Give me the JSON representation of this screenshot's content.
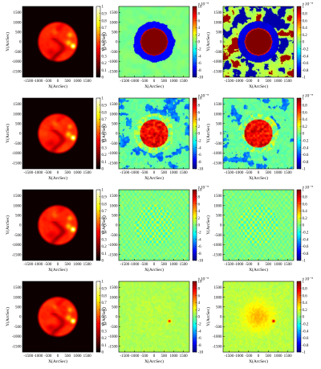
{
  "chart_data": {
    "type": "heatmap",
    "layout": {
      "rows": 4,
      "columns": 3
    },
    "xlabel": "X(ArcSec)",
    "ylabel": "Y(ArcSec)",
    "x_ticks": [
      "-1500",
      "-1000",
      "-500",
      "0",
      "500",
      "1000",
      "1500"
    ],
    "y_ticks": [
      "1500",
      "1000",
      "500",
      "0",
      "-500",
      "-1000",
      "-1500"
    ],
    "xlim": [
      -1800,
      1800
    ],
    "ylim": [
      -1800,
      1800
    ],
    "column_colorbars": [
      {
        "column": 1,
        "colormap": "hot",
        "range": [
          0,
          1
        ],
        "ticks": [
          "1",
          "0.9",
          "0.8",
          "0.7",
          "0.6",
          "0.5",
          "0.4",
          "0.3",
          "0.2",
          "0.1",
          "0"
        ],
        "exponent": ""
      },
      {
        "column": 2,
        "colormap": "jet",
        "range": [
          -10,
          10
        ],
        "ticks": [
          "10",
          "8",
          "6",
          "4",
          "2",
          "0",
          "-2",
          "-4",
          "-6",
          "-8",
          "-10"
        ],
        "exponent": "×10⁻³"
      },
      {
        "column": 3,
        "colormap": "jet",
        "range": [
          -1,
          1
        ],
        "ticks": [
          "1",
          "0.8",
          "0.6",
          "0.4",
          "0.2",
          "0",
          "-0.2",
          "-0.4",
          "-0.6",
          "-0.8",
          "-1"
        ],
        "exponent": "×10⁻³"
      }
    ],
    "panels": [
      {
        "row": 1,
        "column": 1,
        "pattern": "solar-disk-hot"
      },
      {
        "row": 1,
        "column": 2,
        "pattern": "saturated-disk-blue-halo"
      },
      {
        "row": 1,
        "column": 3,
        "pattern": "saturated-disk-mixed-halo"
      },
      {
        "row": 2,
        "column": 1,
        "pattern": "solar-disk-hot"
      },
      {
        "row": 2,
        "column": 2,
        "pattern": "red-core-rough-texture"
      },
      {
        "row": 2,
        "column": 3,
        "pattern": "red-core-rough-texture"
      },
      {
        "row": 3,
        "column": 1,
        "pattern": "solar-disk-hot"
      },
      {
        "row": 3,
        "column": 2,
        "pattern": "fine-ripple-texture"
      },
      {
        "row": 3,
        "column": 3,
        "pattern": "fine-ripple-texture"
      },
      {
        "row": 4,
        "column": 1,
        "pattern": "solar-disk-hot"
      },
      {
        "row": 4,
        "column": 2,
        "pattern": "near-zero-noise"
      },
      {
        "row": 4,
        "column": 3,
        "pattern": "near-zero-noise-bright-center"
      }
    ]
  }
}
